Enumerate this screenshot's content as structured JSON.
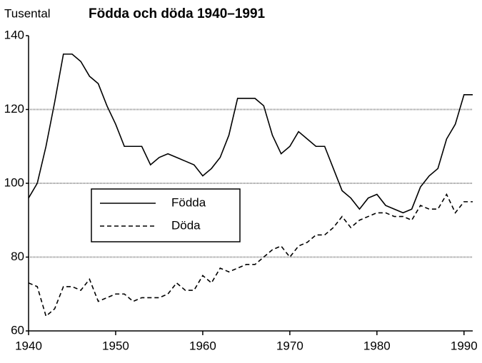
{
  "chart_data": {
    "type": "line",
    "title": "Födda och döda 1940–1991",
    "y_label": "Tusental",
    "x": [
      1940,
      1941,
      1942,
      1943,
      1944,
      1945,
      1946,
      1947,
      1948,
      1949,
      1950,
      1951,
      1952,
      1953,
      1954,
      1955,
      1956,
      1957,
      1958,
      1959,
      1960,
      1961,
      1962,
      1963,
      1964,
      1965,
      1966,
      1967,
      1968,
      1969,
      1970,
      1971,
      1972,
      1973,
      1974,
      1975,
      1976,
      1977,
      1978,
      1979,
      1980,
      1981,
      1982,
      1983,
      1984,
      1985,
      1986,
      1987,
      1988,
      1989,
      1990,
      1991
    ],
    "series": [
      {
        "name": "Födda",
        "color": "#000000",
        "style": "solid",
        "values": [
          96,
          100,
          110,
          122,
          135,
          135,
          133,
          129,
          127,
          121,
          116,
          110,
          110,
          110,
          105,
          107,
          108,
          107,
          106,
          105,
          102,
          104,
          107,
          113,
          123,
          123,
          123,
          121,
          113,
          108,
          110,
          114,
          112,
          110,
          110,
          104,
          98,
          96,
          93,
          96,
          97,
          94,
          93,
          92,
          93,
          99,
          102,
          104,
          112,
          116,
          124,
          124
        ]
      },
      {
        "name": "Döda",
        "color": "#000000",
        "style": "dashed",
        "values": [
          73,
          72,
          64,
          66,
          72,
          72,
          71,
          74,
          68,
          69,
          70,
          70,
          68,
          69,
          69,
          69,
          70,
          73,
          71,
          71,
          75,
          73,
          77,
          76,
          77,
          78,
          78,
          80,
          82,
          83,
          80,
          83,
          84,
          86,
          86,
          88,
          91,
          88,
          90,
          91,
          92,
          92,
          91,
          91,
          90,
          94,
          93,
          93,
          97,
          92,
          95,
          95
        ]
      }
    ],
    "xlim": [
      1940,
      1991
    ],
    "xticks": [
      1940,
      1950,
      1960,
      1970,
      1980,
      1990
    ],
    "ylim": [
      60,
      140
    ],
    "yticks": [
      60,
      80,
      100,
      120,
      140
    ],
    "grid": true,
    "legend": "center-left"
  }
}
